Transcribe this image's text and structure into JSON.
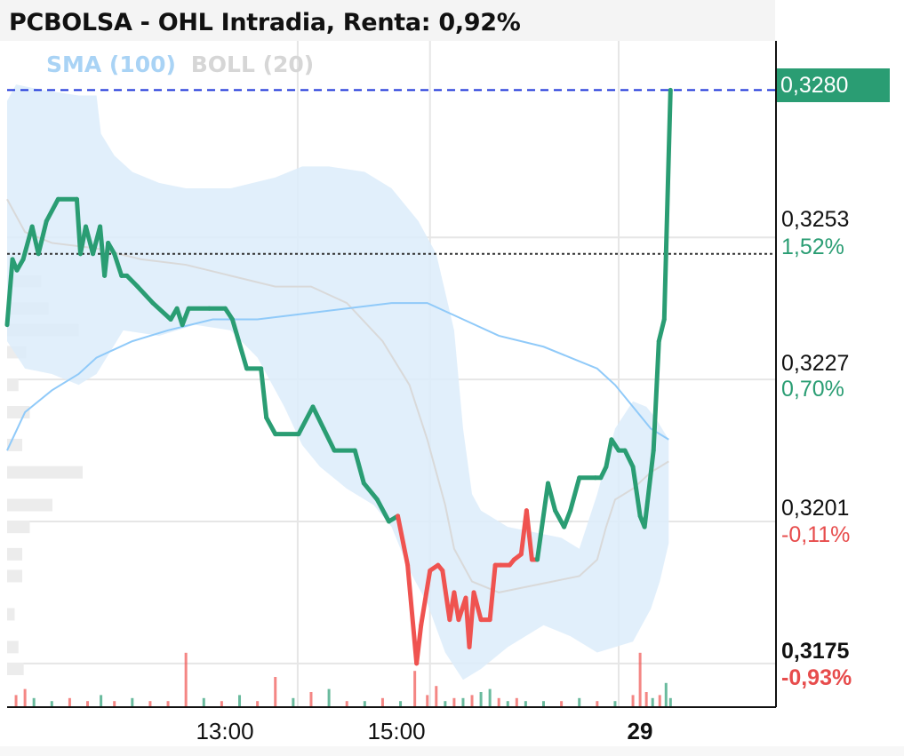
{
  "title": "PCBOLSA - OHL Intradia, Renta: 0,92%",
  "legend": {
    "sma": "SMA (100)",
    "boll": "BOLL (20)"
  },
  "last_price_tag": "0,3280",
  "y_labels": [
    {
      "price": "0,3253",
      "pct": "1,52%",
      "sign": "pos",
      "bold": false
    },
    {
      "price": "0,3227",
      "pct": "0,70%",
      "sign": "pos",
      "bold": false
    },
    {
      "price": "0,3201",
      "pct": "-0,11%",
      "sign": "neg",
      "bold": false
    },
    {
      "price": "0,3175",
      "pct": "-0,93%",
      "sign": "neg",
      "bold": true
    }
  ],
  "x_labels": [
    {
      "label": "13:00",
      "bold": false
    },
    {
      "label": "15:00",
      "bold": false
    },
    {
      "label": "29",
      "bold": true
    }
  ],
  "colors": {
    "up": "#2a9d73",
    "down": "#ef5350",
    "sma": "#90caf9",
    "boll_fill": "#dcecfa",
    "boll_mid": "#d9d9d9",
    "grid": "#e6e6e6",
    "last_line": "#1a33d9",
    "ref_line": "#333333"
  },
  "chart_data": {
    "type": "line",
    "title": "PCBOLSA - OHL Intradia, Renta: 0,92%",
    "x_ticks": [
      "13:00",
      "15:00",
      "29"
    ],
    "y_ticks": [
      0.3175,
      0.3201,
      0.3227,
      0.3253
    ],
    "y_range": [
      0.3167,
      0.3289
    ],
    "reference_price": 0.325,
    "last_price": 0.328,
    "grid": true,
    "series": [
      {
        "name": "OHL",
        "points": [
          [
            0.0,
            0.3237
          ],
          [
            0.6,
            0.3249
          ],
          [
            1.1,
            0.3247
          ],
          [
            1.8,
            0.3249
          ],
          [
            2.8,
            0.3255
          ],
          [
            3.5,
            0.325
          ],
          [
            4.4,
            0.3256
          ],
          [
            5.7,
            0.326
          ],
          [
            7.8,
            0.326
          ],
          [
            8.2,
            0.325
          ],
          [
            8.8,
            0.3255
          ],
          [
            9.6,
            0.325
          ],
          [
            10.4,
            0.3255
          ],
          [
            10.9,
            0.3246
          ],
          [
            11.3,
            0.3252
          ],
          [
            12.0,
            0.325
          ],
          [
            12.8,
            0.3246
          ],
          [
            13.4,
            0.3246
          ],
          [
            14.6,
            0.3244
          ],
          [
            16.3,
            0.3241
          ],
          [
            18.3,
            0.3238
          ],
          [
            19.0,
            0.324
          ],
          [
            19.6,
            0.3237
          ],
          [
            20.3,
            0.324
          ],
          [
            22.6,
            0.324
          ],
          [
            24.4,
            0.324
          ],
          [
            25.2,
            0.3238
          ],
          [
            26.8,
            0.3229
          ],
          [
            28.4,
            0.3229
          ],
          [
            29.0,
            0.322
          ],
          [
            30.0,
            0.3217
          ],
          [
            32.6,
            0.3217
          ],
          [
            34.2,
            0.3222
          ],
          [
            35.4,
            0.3218
          ],
          [
            36.6,
            0.3214
          ],
          [
            38.9,
            0.3214
          ],
          [
            39.9,
            0.3208
          ],
          [
            41.4,
            0.3205
          ],
          [
            42.7,
            0.3201
          ],
          [
            43.7,
            0.3202
          ],
          [
            44.8,
            0.3193
          ],
          [
            45.8,
            0.3175
          ],
          [
            46.3,
            0.3182
          ],
          [
            47.3,
            0.3192
          ],
          [
            48.2,
            0.3193
          ],
          [
            48.7,
            0.3192
          ],
          [
            49.5,
            0.3183
          ],
          [
            50.0,
            0.3188
          ],
          [
            50.5,
            0.3183
          ],
          [
            51.3,
            0.3187
          ],
          [
            51.7,
            0.3178
          ],
          [
            52.2,
            0.3188
          ],
          [
            53.0,
            0.3183
          ],
          [
            54.0,
            0.3183
          ],
          [
            54.6,
            0.3193
          ],
          [
            55.2,
            0.3193
          ],
          [
            56.2,
            0.3193
          ],
          [
            56.7,
            0.3194
          ],
          [
            57.5,
            0.3195
          ],
          [
            58.1,
            0.3203
          ],
          [
            58.7,
            0.3194
          ],
          [
            59.3,
            0.3194
          ],
          [
            60.5,
            0.3208
          ],
          [
            61.3,
            0.3203
          ],
          [
            62.3,
            0.32
          ],
          [
            63.0,
            0.3203
          ],
          [
            64.0,
            0.3209
          ],
          [
            65.8,
            0.3209
          ],
          [
            66.4,
            0.3209
          ],
          [
            67.0,
            0.3211
          ],
          [
            67.6,
            0.3216
          ],
          [
            68.4,
            0.3214
          ],
          [
            69.1,
            0.3214
          ],
          [
            70.0,
            0.3211
          ],
          [
            70.8,
            0.3202
          ],
          [
            71.3,
            0.32
          ],
          [
            72.3,
            0.3214
          ],
          [
            72.9,
            0.3234
          ],
          [
            73.5,
            0.3238
          ],
          [
            74.2,
            0.328
          ]
        ]
      },
      {
        "name": "SMA (100)",
        "points": [
          [
            0.0,
            0.3214
          ],
          [
            2.0,
            0.3221
          ],
          [
            5.0,
            0.3225
          ],
          [
            8.0,
            0.3228
          ],
          [
            10.0,
            0.3231
          ],
          [
            14.0,
            0.3234
          ],
          [
            18.0,
            0.3236
          ],
          [
            23.0,
            0.3238
          ],
          [
            28.0,
            0.3238
          ],
          [
            33.0,
            0.3239
          ],
          [
            38.0,
            0.324
          ],
          [
            43.0,
            0.3241
          ],
          [
            47.0,
            0.3241
          ],
          [
            51.0,
            0.3238
          ],
          [
            55.0,
            0.3235
          ],
          [
            60.0,
            0.3233
          ],
          [
            63.0,
            0.3231
          ],
          [
            66.0,
            0.3229
          ],
          [
            68.0,
            0.3226
          ],
          [
            70.0,
            0.3222
          ],
          [
            72.0,
            0.3218
          ],
          [
            74.0,
            0.3216
          ]
        ]
      },
      {
        "name": "BOLL (20) upper",
        "points": [
          [
            0.0,
            0.3278
          ],
          [
            1.0,
            0.3281
          ],
          [
            4.0,
            0.328
          ],
          [
            8.0,
            0.3279
          ],
          [
            10.0,
            0.3279
          ],
          [
            10.5,
            0.3272
          ],
          [
            12.0,
            0.3268
          ],
          [
            14.0,
            0.3265
          ],
          [
            17.0,
            0.3263
          ],
          [
            20.0,
            0.3262
          ],
          [
            25.0,
            0.3262
          ],
          [
            30.0,
            0.3264
          ],
          [
            33.0,
            0.3266
          ],
          [
            36.0,
            0.3266
          ],
          [
            40.0,
            0.3265
          ],
          [
            43.0,
            0.3262
          ],
          [
            46.0,
            0.3256
          ],
          [
            48.0,
            0.325
          ],
          [
            50.0,
            0.3236
          ],
          [
            51.0,
            0.3218
          ],
          [
            52.0,
            0.3206
          ],
          [
            53.0,
            0.3203
          ],
          [
            56.0,
            0.32
          ],
          [
            59.0,
            0.3199
          ],
          [
            62.0,
            0.3198
          ],
          [
            64.0,
            0.3196
          ],
          [
            66.0,
            0.3206
          ],
          [
            68.0,
            0.3218
          ],
          [
            70.0,
            0.3223
          ],
          [
            71.5,
            0.3222
          ],
          [
            72.5,
            0.322
          ],
          [
            74.0,
            0.3216
          ]
        ]
      },
      {
        "name": "BOLL (20) lower",
        "points": [
          [
            74.0,
            0.3197
          ],
          [
            73.0,
            0.319
          ],
          [
            72.0,
            0.3185
          ],
          [
            70.0,
            0.3179
          ],
          [
            68.0,
            0.3178
          ],
          [
            66.0,
            0.3177
          ],
          [
            63.0,
            0.318
          ],
          [
            60.0,
            0.3182
          ],
          [
            56.0,
            0.3178
          ],
          [
            53.0,
            0.3174
          ],
          [
            51.0,
            0.3172
          ],
          [
            49.0,
            0.3177
          ],
          [
            47.0,
            0.3186
          ],
          [
            45.0,
            0.3192
          ],
          [
            43.0,
            0.32
          ],
          [
            41.0,
            0.3204
          ],
          [
            38.0,
            0.3207
          ],
          [
            35.0,
            0.3211
          ],
          [
            33.0,
            0.3215
          ],
          [
            31.0,
            0.3222
          ],
          [
            28.0,
            0.3231
          ],
          [
            25.0,
            0.3236
          ],
          [
            21.0,
            0.3237
          ],
          [
            17.0,
            0.3235
          ],
          [
            13.0,
            0.3236
          ],
          [
            10.0,
            0.3228
          ],
          [
            8.0,
            0.3226
          ],
          [
            5.0,
            0.3228
          ],
          [
            2.0,
            0.3229
          ],
          [
            0.0,
            0.3234
          ]
        ]
      },
      {
        "name": "BOLL (20) middle",
        "points": [
          [
            0.0,
            0.326
          ],
          [
            2.0,
            0.3254
          ],
          [
            5.0,
            0.3252
          ],
          [
            10.0,
            0.3251
          ],
          [
            15.0,
            0.3249
          ],
          [
            20.0,
            0.3248
          ],
          [
            25.0,
            0.3246
          ],
          [
            30.0,
            0.3244
          ],
          [
            34.0,
            0.3244
          ],
          [
            38.0,
            0.3241
          ],
          [
            42.0,
            0.3234
          ],
          [
            45.0,
            0.3226
          ],
          [
            47.0,
            0.3216
          ],
          [
            49.0,
            0.3204
          ],
          [
            50.0,
            0.3196
          ],
          [
            52.0,
            0.319
          ],
          [
            55.0,
            0.3188
          ],
          [
            58.0,
            0.3189
          ],
          [
            61.0,
            0.319
          ],
          [
            64.0,
            0.3191
          ],
          [
            66.0,
            0.3194
          ],
          [
            67.0,
            0.32
          ],
          [
            68.0,
            0.3205
          ],
          [
            70.0,
            0.3207
          ],
          [
            72.0,
            0.321
          ],
          [
            74.0,
            0.3212
          ]
        ]
      }
    ],
    "volume_bars": [
      [
        1.0,
        4,
        "down"
      ],
      [
        2.0,
        6,
        "down"
      ],
      [
        3.0,
        3,
        "up"
      ],
      [
        5.0,
        2,
        "up"
      ],
      [
        7.0,
        3,
        "down"
      ],
      [
        9.0,
        2,
        "down"
      ],
      [
        10.5,
        4,
        "up"
      ],
      [
        12.0,
        2,
        "down"
      ],
      [
        14.0,
        3,
        "up"
      ],
      [
        16.0,
        2,
        "down"
      ],
      [
        18.0,
        2,
        "down"
      ],
      [
        20.0,
        18,
        "down"
      ],
      [
        22.0,
        3,
        "up"
      ],
      [
        24.0,
        2,
        "down"
      ],
      [
        26.0,
        4,
        "up"
      ],
      [
        28.0,
        2,
        "down"
      ],
      [
        30.0,
        10,
        "down"
      ],
      [
        32.0,
        3,
        "up"
      ],
      [
        34.0,
        5,
        "down"
      ],
      [
        36.0,
        6,
        "up"
      ],
      [
        38.0,
        2,
        "down"
      ],
      [
        40.0,
        2,
        "up"
      ],
      [
        42.0,
        3,
        "down"
      ],
      [
        44.0,
        2,
        "up"
      ],
      [
        45.6,
        12,
        "down"
      ],
      [
        47.0,
        4,
        "down"
      ],
      [
        48.0,
        7,
        "down"
      ],
      [
        49.0,
        2,
        "up"
      ],
      [
        50.0,
        3,
        "down"
      ],
      [
        51.0,
        3,
        "up"
      ],
      [
        52.0,
        4,
        "down"
      ],
      [
        53.0,
        5,
        "up"
      ],
      [
        54.0,
        6,
        "up"
      ],
      [
        55.0,
        3,
        "down"
      ],
      [
        56.0,
        2,
        "up"
      ],
      [
        57.0,
        3,
        "down"
      ],
      [
        58.0,
        2,
        "up"
      ],
      [
        60.0,
        2,
        "up"
      ],
      [
        62.0,
        2,
        "down"
      ],
      [
        64.0,
        3,
        "up"
      ],
      [
        66.0,
        2,
        "down"
      ],
      [
        68.0,
        2,
        "up"
      ],
      [
        70.0,
        4,
        "down"
      ],
      [
        70.8,
        18,
        "down"
      ],
      [
        71.5,
        5,
        "down"
      ],
      [
        72.2,
        3,
        "up"
      ],
      [
        73.0,
        4,
        "down"
      ],
      [
        73.7,
        8,
        "up"
      ],
      [
        74.2,
        3,
        "up"
      ]
    ],
    "volume_profile": [
      [
        0.3245,
        0.45
      ],
      [
        0.324,
        0.55
      ],
      [
        0.3236,
        0.95
      ],
      [
        0.3232,
        0.25
      ],
      [
        0.3226,
        0.15
      ],
      [
        0.3221,
        0.3
      ],
      [
        0.3215,
        0.2
      ],
      [
        0.321,
        1.0
      ],
      [
        0.3204,
        0.6
      ],
      [
        0.32,
        0.3
      ],
      [
        0.3195,
        0.2
      ],
      [
        0.3191,
        0.2
      ],
      [
        0.3184,
        0.1
      ],
      [
        0.3178,
        0.15
      ],
      [
        0.3174,
        0.22
      ]
    ],
    "x_max": 86
  }
}
